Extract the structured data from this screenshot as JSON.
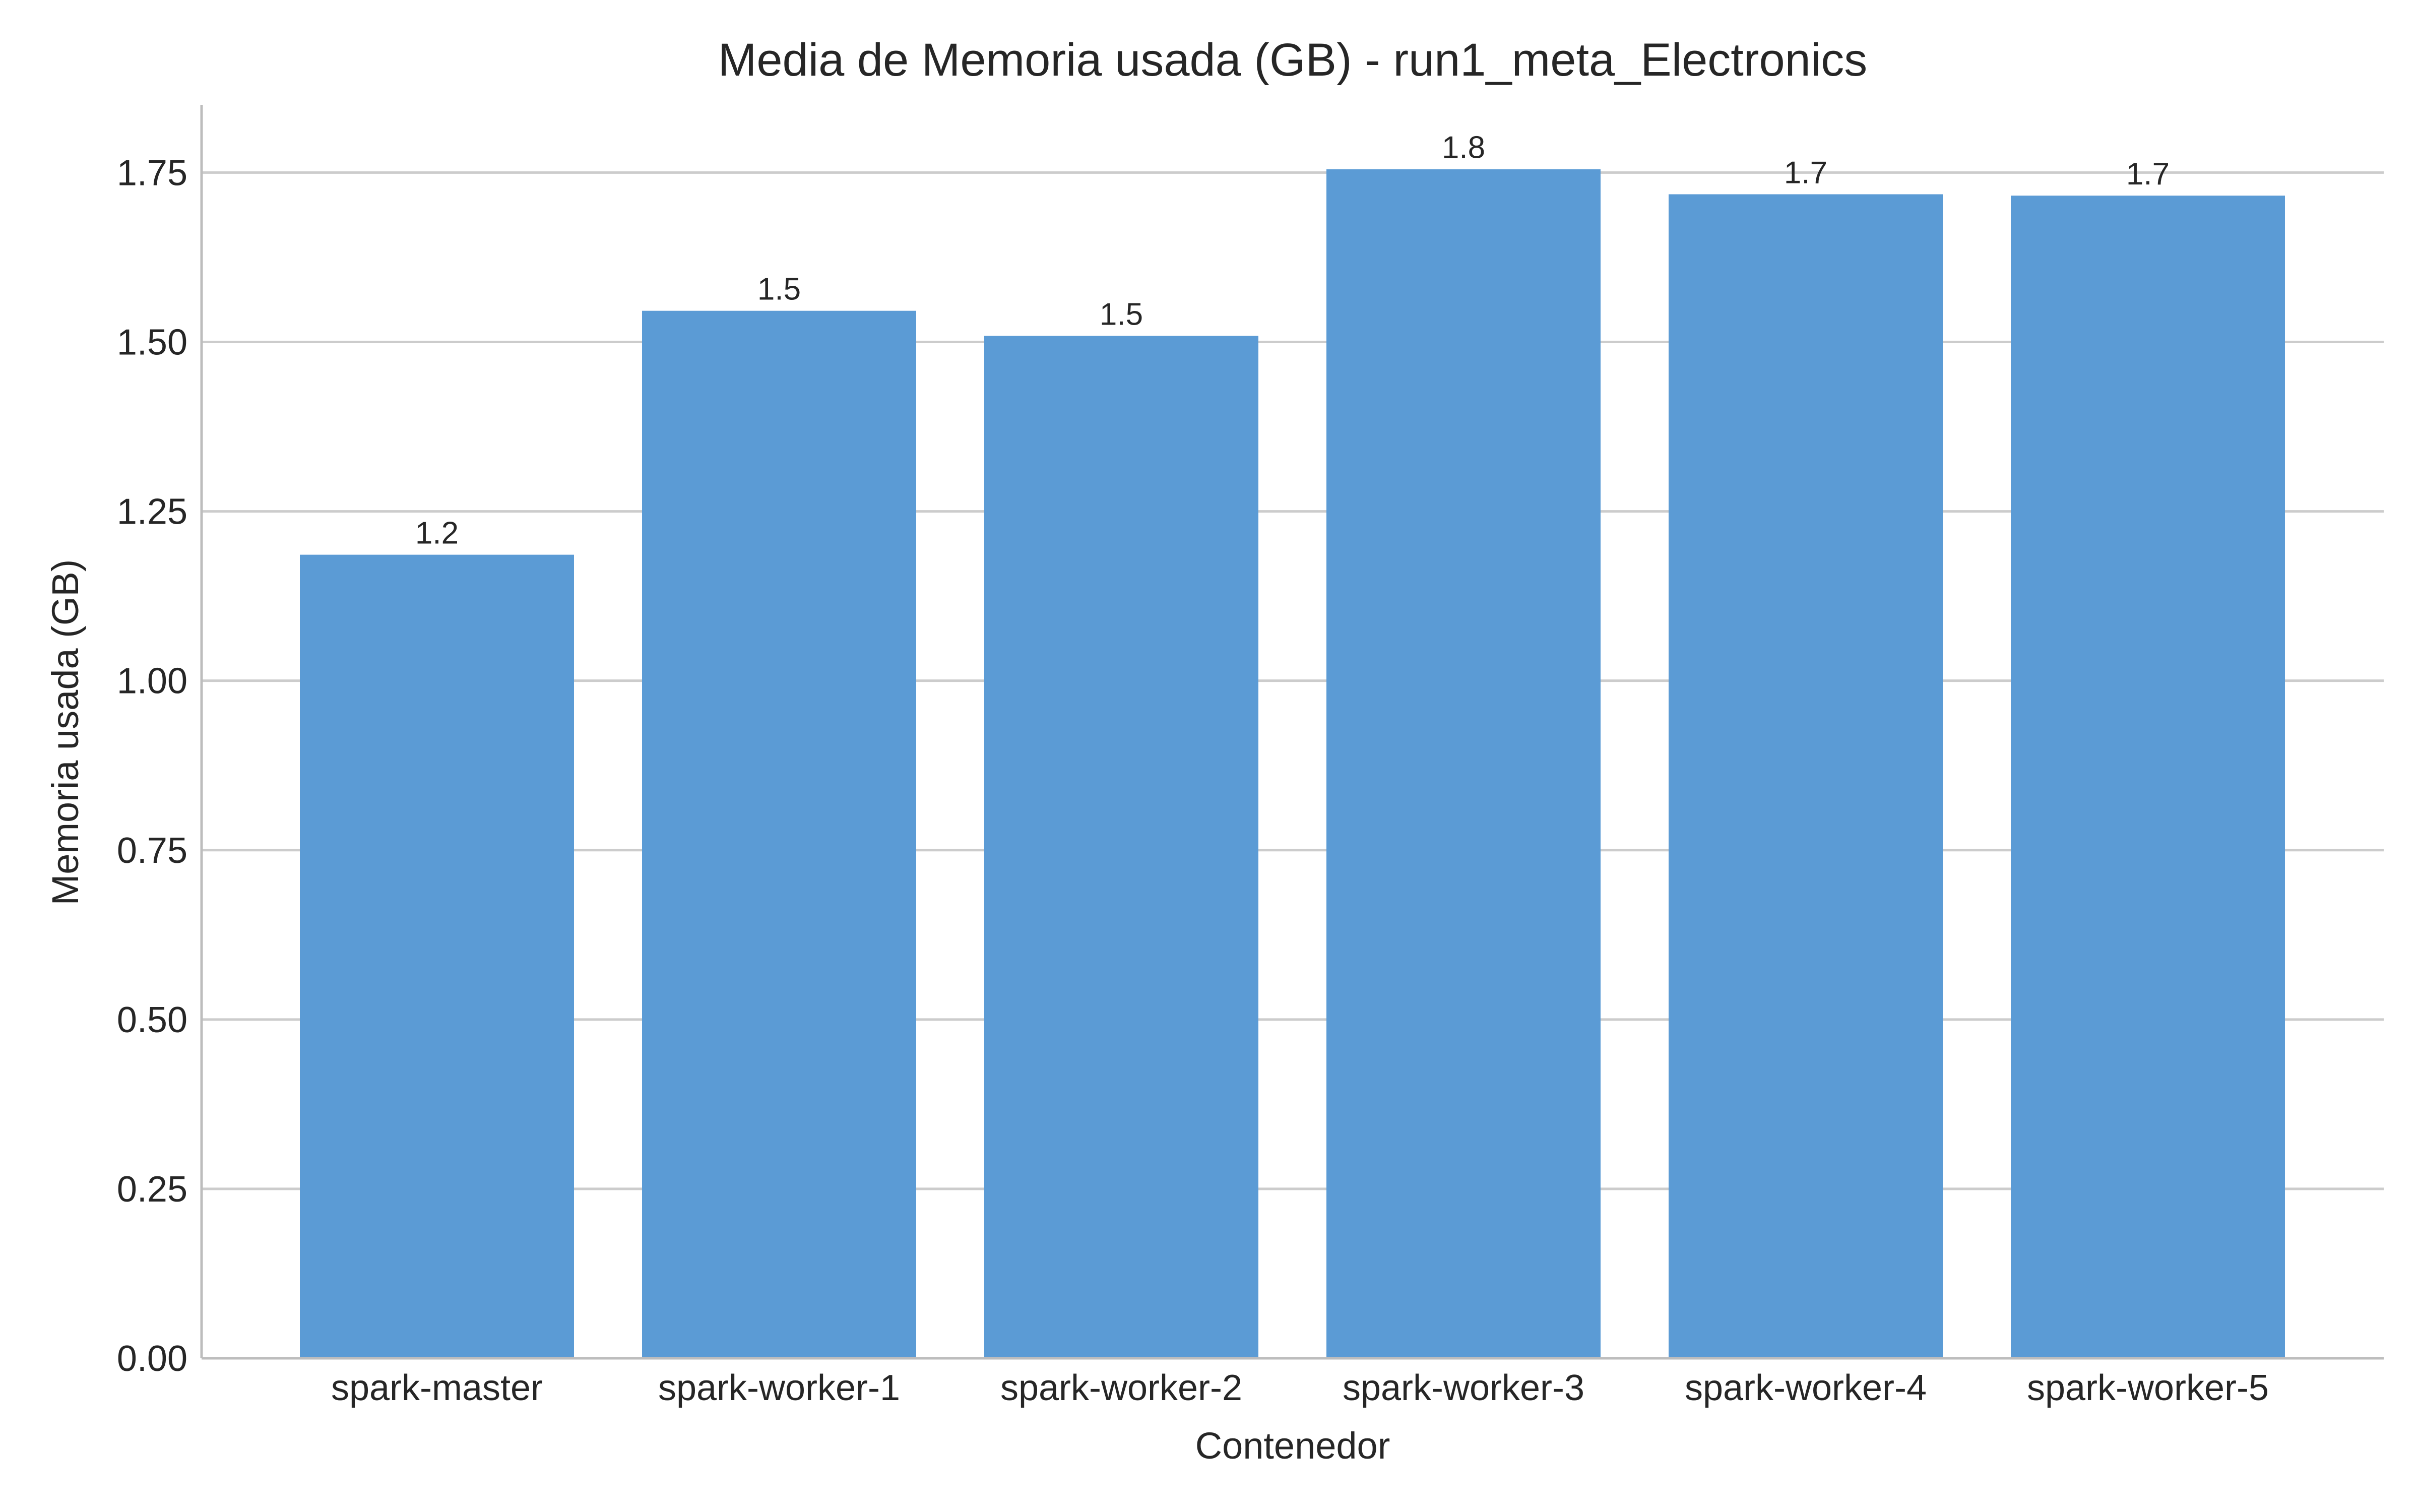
{
  "chart_data": {
    "type": "bar",
    "title": "Media de Memoria usada (GB) - run1_meta_Electronics",
    "xlabel": "Contenedor",
    "ylabel": "Memoria usada (GB)",
    "categories": [
      "spark-master",
      "spark-worker-1",
      "spark-worker-2",
      "spark-worker-3",
      "spark-worker-4",
      "spark-worker-5"
    ],
    "values": [
      1.186,
      1.546,
      1.509,
      1.755,
      1.718,
      1.716
    ],
    "value_labels": [
      "1.2",
      "1.5",
      "1.5",
      "1.8",
      "1.7",
      "1.7"
    ],
    "yticks": [
      "0.00",
      "0.25",
      "0.50",
      "0.75",
      "1.00",
      "1.25",
      "1.50",
      "1.75"
    ],
    "ylim": [
      0,
      1.85
    ],
    "grid": "horizontal",
    "colors": {
      "bar": "#5b9bd5",
      "grid": "#cccccc",
      "axis": "#bdbdbd",
      "text": "#262626"
    }
  }
}
